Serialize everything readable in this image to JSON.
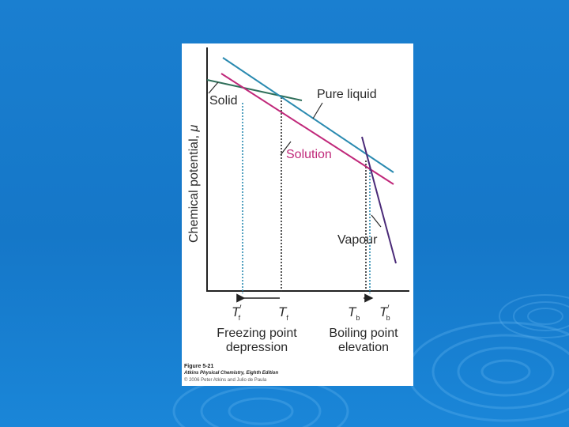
{
  "colors": {
    "background": "#1a7fd0",
    "card": "#ffffff",
    "liquid": "#2a8ab0",
    "solid": "#2f6f5a",
    "solution": "#c0287a",
    "vapour": "#4a2a78",
    "axis": "#222222",
    "text": "#2a2a2a"
  },
  "diagram": {
    "axis_label_prefix": "Chemical potential, ",
    "axis_label_symbol": "μ",
    "curves": {
      "pure_liquid": "Pure liquid",
      "solid": "Solid",
      "solution": "Solution",
      "vapour": "Vapour"
    },
    "temperatures": {
      "tf_prime": {
        "symbol": "T",
        "sub": "f",
        "prime": "′"
      },
      "tf": {
        "symbol": "T",
        "sub": "f"
      },
      "tb": {
        "symbol": "T",
        "sub": "b"
      },
      "tb_prime": {
        "symbol": "T",
        "sub": "b",
        "prime": "′"
      }
    },
    "freezing_label": [
      "Freezing point",
      "depression"
    ],
    "boiling_label": [
      "Boiling point",
      "elevation"
    ]
  },
  "caption": {
    "figure": "Figure 5-21",
    "book": "Atkins Physical Chemistry, Eighth Edition",
    "copyright": "© 2006 Peter Atkins and Julio de Paula"
  }
}
